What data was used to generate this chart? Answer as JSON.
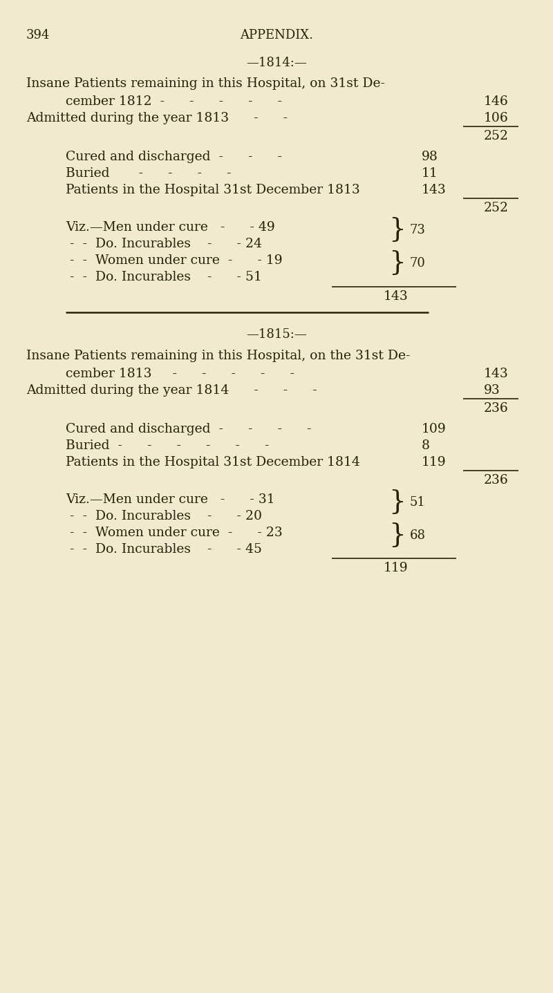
{
  "bg_color": "#f0ebcf",
  "text_color": "#2a1f0a",
  "page_number": "394",
  "header": "APPENDIX.",
  "section1_title": "—1814:—",
  "section2_title": "—1815:—"
}
